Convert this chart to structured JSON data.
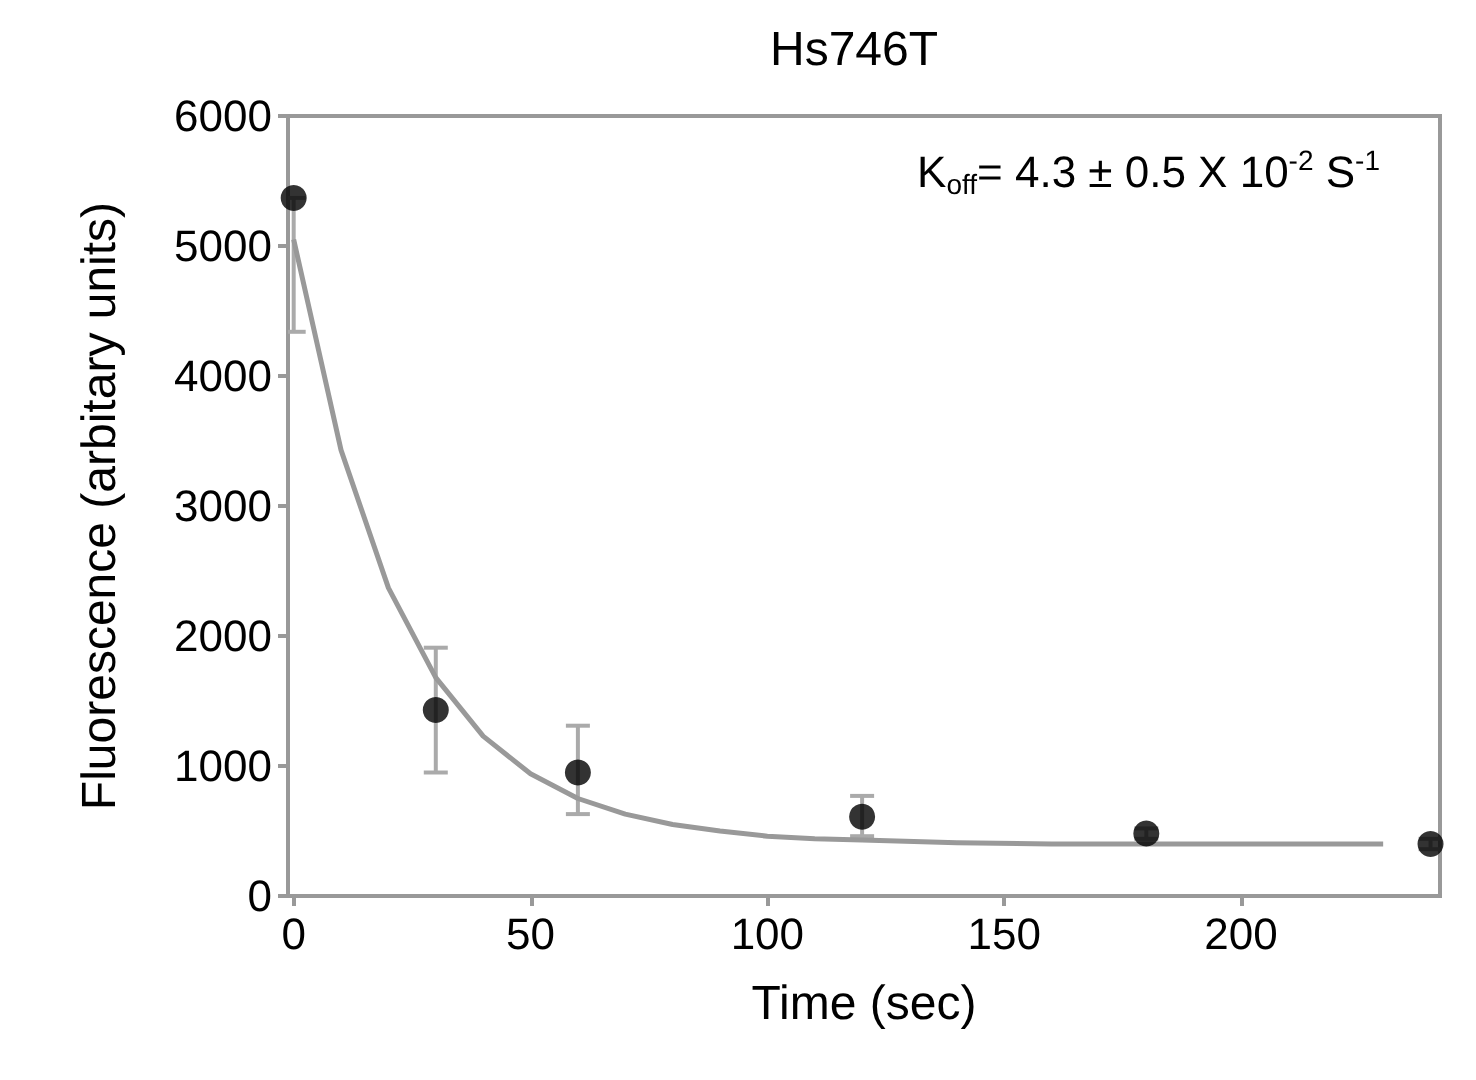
{
  "chart_data": {
    "type": "scatter",
    "title": "Hs746T",
    "xlabel": "Time (sec)",
    "ylabel": "Fluorescence (arbitary units)",
    "annotations": [
      "K$_{off}$= 4.3 ± 0.5 X 10$^{-2}$ S$^{-1}$"
    ],
    "xlim": [
      -1.2,
      242
    ],
    "xticks": [
      0,
      50,
      100,
      150,
      200
    ],
    "ylim": [
      0,
      6000
    ],
    "yticks": [
      0,
      1000,
      2000,
      3000,
      4000,
      5000,
      6000
    ],
    "grid": false,
    "marker": "circle",
    "series": [
      {
        "type": "scatter",
        "color": "#000000",
        "x": [
          0,
          30,
          60,
          120,
          180,
          240
        ],
        "values": [
          5370,
          1430,
          950,
          610,
          480,
          400
        ],
        "errors": [
          [
            4340,
            5370
          ],
          [
            950,
            1910
          ],
          [
            630,
            1310
          ],
          [
            460,
            770
          ],
          [
            440,
            520
          ],
          [
            360,
            440
          ]
        ]
      },
      {
        "type": "line",
        "color": "#999999",
        "marker": "none",
        "line_style": "solid",
        "x": [
          0,
          10,
          20,
          30,
          40,
          50,
          60,
          70,
          80,
          90,
          100,
          110,
          120,
          140,
          160,
          200,
          230
        ],
        "values": [
          5050,
          3430,
          2370,
          1680,
          1230,
          940,
          750,
          630,
          550,
          500,
          460,
          440,
          430,
          410,
          400,
          400,
          400
        ]
      }
    ]
  }
}
